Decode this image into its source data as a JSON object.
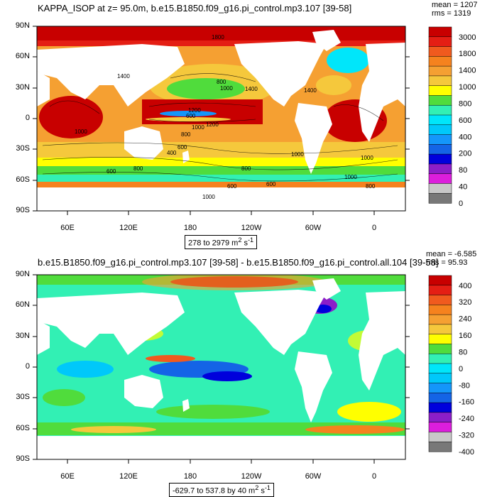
{
  "panel_top": {
    "title": "KAPPA_ISOP at z=  95.0m, b.e15.B1850.f09_g16.pi_control.mp3.107 [39-58]",
    "mean": "mean = 1207",
    "rms": "rms = 1319",
    "range_label": "278 to 2979 m",
    "units_sup": "2",
    "units_s": " s",
    "units_sup2": "-1",
    "contour_labels": [
      "1800",
      "1400",
      "800",
      "1000",
      "1200",
      "600",
      "1200",
      "1000",
      "800",
      "600",
      "400",
      "1000",
      "600",
      "800",
      "1400",
      "1000",
      "800",
      "600",
      "600",
      "1000",
      "1000",
      "800",
      "1400",
      "1000"
    ],
    "colorbar": {
      "labels": [
        "3000",
        "1800",
        "1400",
        "1000",
        "800",
        "600",
        "400",
        "200",
        "80",
        "40",
        "0"
      ],
      "colors": [
        "#C80000",
        "#E41E14",
        "#F05A1E",
        "#F5821E",
        "#F5A032",
        "#F5C83C",
        "#FFFF00",
        "#50DC3C",
        "#32F0B4",
        "#00E6FA",
        "#00C8FA",
        "#1496FA",
        "#1464E6",
        "#0000DC",
        "#8C1EC8",
        "#DC1EDC",
        "#C8C8C8",
        "#787878"
      ]
    }
  },
  "panel_bottom": {
    "title": "b.e15.B1850.f09_g16.pi_control.mp3.107 [39-58] - b.e15.B1850.f09_g16.pi_control.all.104 [39-58]",
    "mean": "mean = -6.585",
    "rms": "rms = 95.93",
    "range_label": "-629.7 to 537.8 by 40 m",
    "units_sup": "2",
    "units_s": " s",
    "units_sup2": "-1",
    "colorbar": {
      "labels": [
        "400",
        "320",
        "240",
        "160",
        "80",
        "0",
        "-80",
        "-160",
        "-240",
        "-320",
        "-400"
      ],
      "colors": [
        "#C80000",
        "#E41E14",
        "#F05A1E",
        "#F5821E",
        "#F5A032",
        "#F5C83C",
        "#FFFF00",
        "#50DC3C",
        "#32F0B4",
        "#00E6FA",
        "#00C8FA",
        "#1496FA",
        "#1464E6",
        "#0000DC",
        "#8C1EC8",
        "#DC1EDC",
        "#C8C8C8",
        "#787878"
      ]
    }
  },
  "axes": {
    "lat_labels": [
      "90N",
      "60N",
      "30N",
      "0",
      "30S",
      "60S",
      "90S"
    ],
    "lon_labels": [
      "60E",
      "120E",
      "180",
      "120W",
      "60W",
      "0"
    ]
  }
}
